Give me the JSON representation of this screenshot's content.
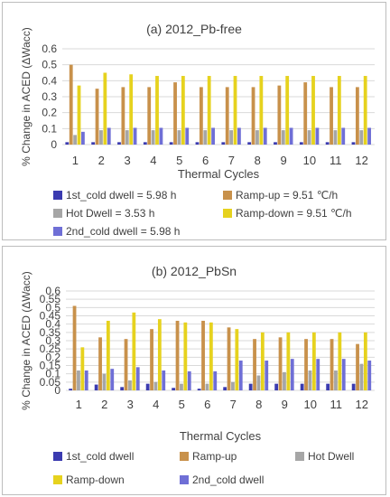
{
  "chart_data": [
    {
      "type": "bar",
      "title": "(a) 2012_Pb-free",
      "xlabel": "Thermal Cycles",
      "ylabel": "% Change in ACED (ΔWacc)",
      "ylim": [
        0,
        0.6
      ],
      "yticks": [
        0,
        0.1,
        0.2,
        0.3,
        0.4,
        0.5,
        0.6
      ],
      "grid": true,
      "legend_position": "bottom",
      "categories": [
        "1",
        "2",
        "3",
        "4",
        "5",
        "6",
        "7",
        "8",
        "9",
        "10",
        "11",
        "12"
      ],
      "series": [
        {
          "name": "1st_cold dwell = 5.98 h",
          "color": "#3b3bb0",
          "values": [
            0.015,
            0.015,
            0.015,
            0.015,
            0.015,
            0.015,
            0.015,
            0.015,
            0.015,
            0.015,
            0.015,
            0.015
          ]
        },
        {
          "name": "Ramp-up = 9.51 ℃/h",
          "color": "#c8914b",
          "values": [
            0.5,
            0.35,
            0.36,
            0.36,
            0.39,
            0.36,
            0.36,
            0.36,
            0.37,
            0.39,
            0.36,
            0.36
          ]
        },
        {
          "name": "Hot Dwell = 3.53 h",
          "color": "#a6a6a6",
          "values": [
            0.06,
            0.09,
            0.09,
            0.09,
            0.09,
            0.09,
            0.09,
            0.09,
            0.09,
            0.09,
            0.09,
            0.09
          ]
        },
        {
          "name": "Ramp-down = 9.51 ℃/h",
          "color": "#e6d21e",
          "values": [
            0.37,
            0.45,
            0.44,
            0.43,
            0.43,
            0.43,
            0.43,
            0.43,
            0.43,
            0.43,
            0.43,
            0.43
          ]
        },
        {
          "name": "2nd_cold dwell = 5.98 h",
          "color": "#6f6fd6",
          "values": [
            0.08,
            0.105,
            0.105,
            0.105,
            0.105,
            0.105,
            0.105,
            0.105,
            0.105,
            0.105,
            0.105,
            0.105
          ]
        }
      ]
    },
    {
      "type": "bar",
      "title": "(b) 2012_PbSn",
      "xlabel": "Thermal Cycles",
      "ylabel": "% Change in ACED (ΔWacc)",
      "ylim": [
        0,
        0.6
      ],
      "yticks": [
        0,
        0.05,
        0.1,
        0.15,
        0.2,
        0.25,
        0.3,
        0.35,
        0.4,
        0.45,
        0.5,
        0.55,
        0.6
      ],
      "grid": true,
      "legend_position": "bottom",
      "categories": [
        "1",
        "2",
        "3",
        "4",
        "5",
        "6",
        "7",
        "8",
        "9",
        "10",
        "11",
        "12"
      ],
      "series": [
        {
          "name": "1st_cold dwell",
          "color": "#3b3bb0",
          "values": [
            0.01,
            0.035,
            0.02,
            0.04,
            0.015,
            0.01,
            0.02,
            0.04,
            0.04,
            0.04,
            0.04,
            0.04
          ]
        },
        {
          "name": "Ramp-up",
          "color": "#c8914b",
          "values": [
            0.51,
            0.32,
            0.31,
            0.37,
            0.42,
            0.42,
            0.38,
            0.31,
            0.32,
            0.31,
            0.31,
            0.28
          ]
        },
        {
          "name": "Hot Dwell",
          "color": "#a6a6a6",
          "values": [
            0.12,
            0.1,
            0.06,
            0.05,
            0.04,
            0.04,
            0.05,
            0.09,
            0.11,
            0.12,
            0.12,
            0.16
          ]
        },
        {
          "name": "Ramp-down",
          "color": "#e6d21e",
          "values": [
            0.26,
            0.42,
            0.47,
            0.43,
            0.41,
            0.41,
            0.37,
            0.35,
            0.35,
            0.35,
            0.35,
            0.35
          ]
        },
        {
          "name": "2nd_cold dwell",
          "color": "#6f6fd6",
          "values": [
            0.12,
            0.13,
            0.14,
            0.12,
            0.115,
            0.115,
            0.18,
            0.18,
            0.19,
            0.19,
            0.19,
            0.18
          ]
        }
      ]
    }
  ]
}
